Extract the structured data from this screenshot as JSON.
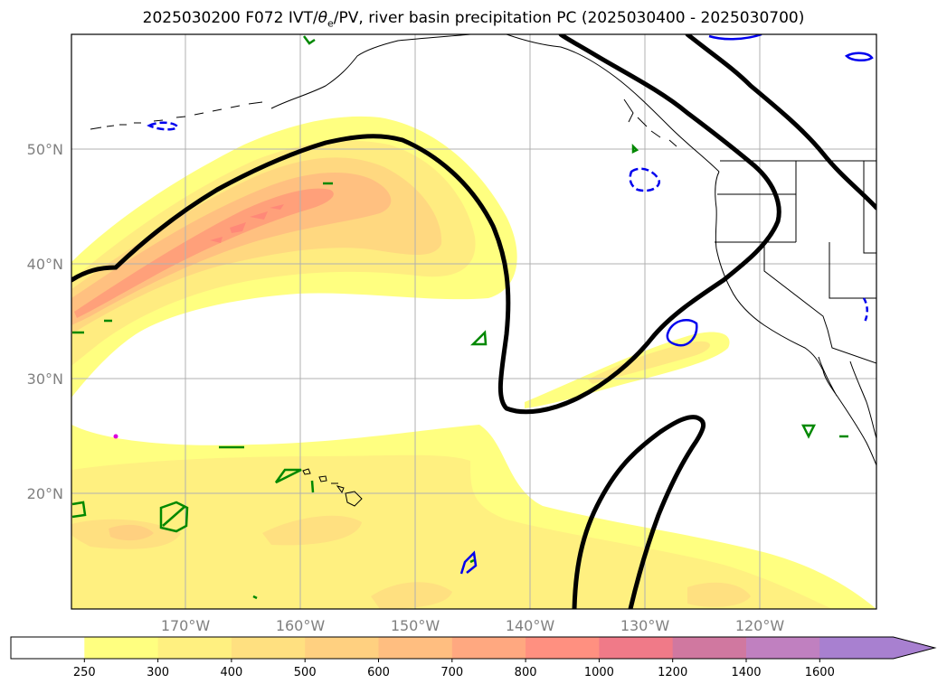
{
  "title": {
    "prefix": "2025030200 F072 IVT/",
    "theta": "θ",
    "sub": "e",
    "suffix": "/PV, river basin precipitation PC (2025030400 - 2025030700)"
  },
  "lat_labels": [
    {
      "lat": 50,
      "text": "50°N"
    },
    {
      "lat": 40,
      "text": "40°N"
    },
    {
      "lat": 30,
      "text": "30°N"
    },
    {
      "lat": 20,
      "text": "20°N"
    }
  ],
  "lon_labels": [
    {
      "lon": -170,
      "text": "170°W"
    },
    {
      "lon": -160,
      "text": "160°W"
    },
    {
      "lon": -150,
      "text": "150°W"
    },
    {
      "lon": -140,
      "text": "140°W"
    },
    {
      "lon": -130,
      "text": "130°W"
    },
    {
      "lon": -120,
      "text": "120°W"
    }
  ],
  "colorbar": {
    "levels": [
      "250",
      "300",
      "400",
      "500",
      "600",
      "700",
      "800",
      "1000",
      "1200",
      "1400",
      "1600"
    ],
    "colors": [
      "#ffffff",
      "#ffff80",
      "#fff080",
      "#ffe080",
      "#ffd080",
      "#ffbe80",
      "#ffa880",
      "#ff9080",
      "#f07a88",
      "#d078a0",
      "#c080c0",
      "#a880d0"
    ]
  },
  "colors": {
    "ivt_light": "#ffff80",
    "ivt_mid": "#ffe080",
    "ivt_high": "#ffb07a",
    "ivt_peak": "#ff8878",
    "pv_contour": "#000000",
    "theta_cold": "#0000ee",
    "theta_green": "#008800",
    "coast": "#000000",
    "grid": "#b0b0b0"
  }
}
